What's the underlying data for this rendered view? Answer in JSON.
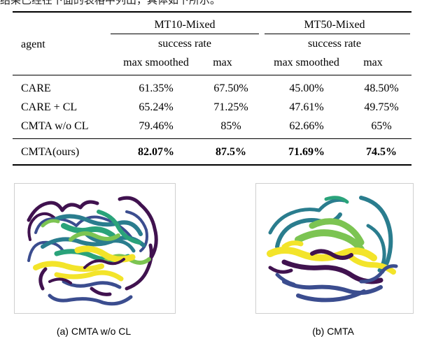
{
  "heading_cut": "结果已经在下面的表格中列出，具体如下所示。",
  "table": {
    "agent_header": "agent",
    "groups": [
      {
        "name": "MT10-Mixed",
        "metric": "success rate",
        "cols": [
          "max smoothed",
          "max"
        ]
      },
      {
        "name": "MT50-Mixed",
        "metric": "success rate",
        "cols": [
          "max smoothed",
          "max"
        ]
      }
    ],
    "rows": [
      {
        "agent": "CARE",
        "values": [
          "61.35%",
          "67.50%",
          "45.00%",
          "48.50%"
        ],
        "bold": false
      },
      {
        "agent": "CARE + CL",
        "values": [
          "65.24%",
          "71.25%",
          "47.61%",
          "49.75%"
        ],
        "bold": false
      },
      {
        "agent": "CMTA w/o CL",
        "values": [
          "79.46%",
          "85%",
          "62.66%",
          "65%"
        ],
        "bold": false
      },
      {
        "agent": "CMTA(ours)",
        "values": [
          "82.07%",
          "87.5%",
          "71.69%",
          "74.5%"
        ],
        "bold": true
      }
    ]
  },
  "figures": {
    "a": {
      "caption": "(a) CMTA w/o CL"
    },
    "b": {
      "caption": "(b) CMTA"
    },
    "palette": {
      "purple": "#40124f",
      "indigo": "#3b4d8f",
      "teal": "#2a7d8e",
      "green": "#2aa37a",
      "lime": "#7cc452",
      "yellow": "#f3e42a"
    }
  }
}
